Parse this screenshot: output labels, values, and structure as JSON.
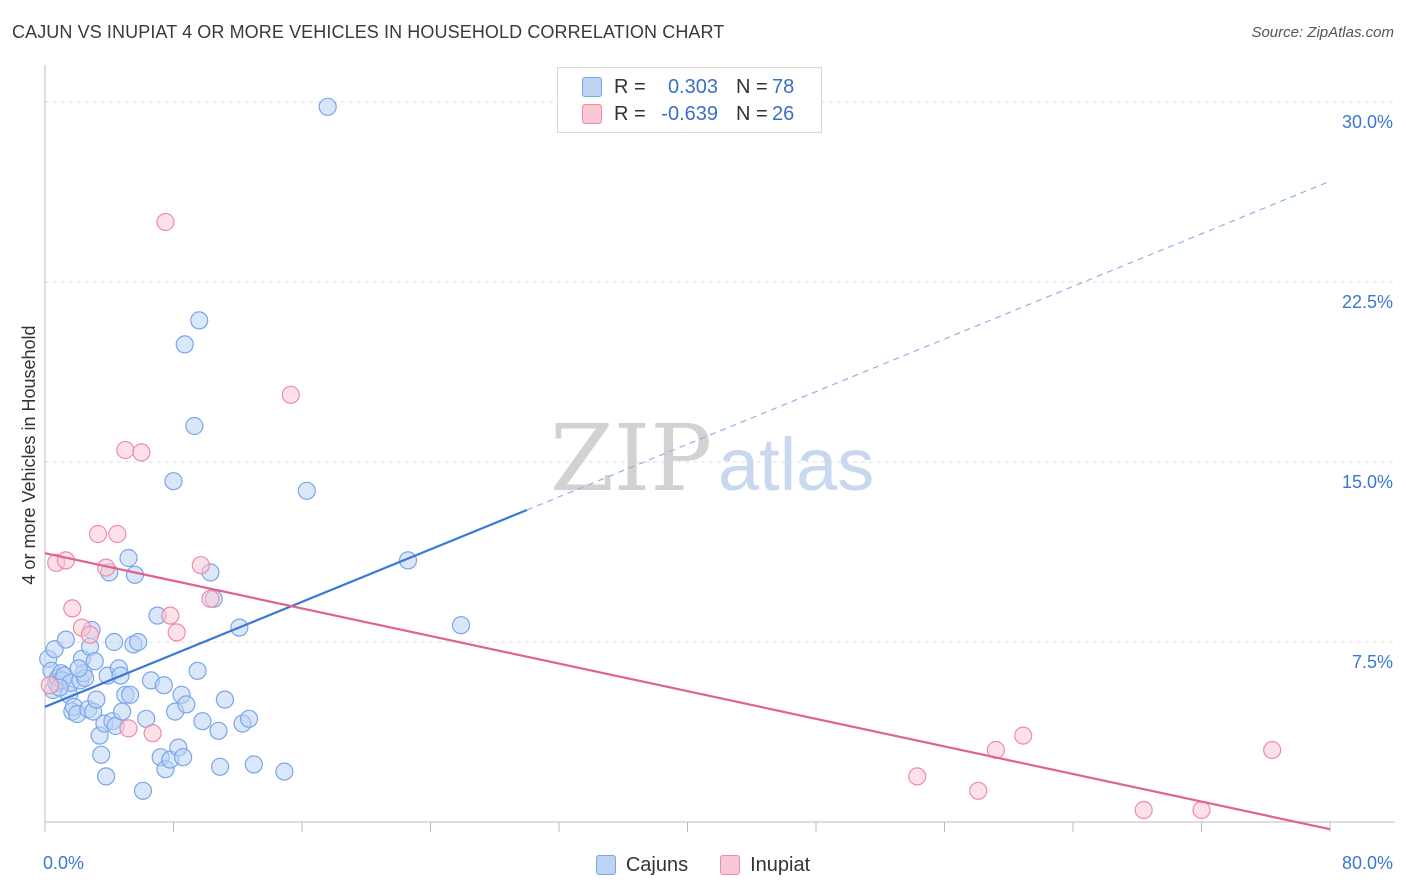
{
  "title": "CAJUN VS INUPIAT 4 OR MORE VEHICLES IN HOUSEHOLD CORRELATION CHART",
  "source": "Source: ZipAtlas.com",
  "watermark": {
    "zip": "ZIP",
    "atlas": "atlas"
  },
  "legend_top": [
    {
      "name": "Cajuns",
      "r_label": "R =",
      "r_value": "0.303",
      "n_label": "N =",
      "n_value": "78",
      "color": "#7aa6e8",
      "fill": "#bcd3f4"
    },
    {
      "name": "Inupiat",
      "r_label": "R =",
      "r_value": "-0.639",
      "n_label": "N =",
      "n_value": "26",
      "color": "#f08aaa",
      "fill": "#f9c8d6"
    }
  ],
  "legend_bottom": [
    {
      "label": "Cajuns",
      "color": "#7aa6e8",
      "fill": "#bcd3f4"
    },
    {
      "label": "Inupiat",
      "color": "#f08aaa",
      "fill": "#f9c8d6"
    }
  ],
  "chart_data": {
    "type": "scatter",
    "title": "CAJUN VS INUPIAT 4 OR MORE VEHICLES IN HOUSEHOLD CORRELATION CHART",
    "xlabel": "",
    "ylabel": "4 or more Vehicles in Household",
    "xlim": [
      0,
      80
    ],
    "ylim": [
      0,
      31
    ],
    "x_tick_labels": [
      {
        "value": 0,
        "label": "0.0%"
      },
      {
        "value": 80,
        "label": "80.0%"
      }
    ],
    "y_tick_labels": [
      {
        "value": 7.5,
        "label": "7.5%"
      },
      {
        "value": 15.0,
        "label": "15.0%"
      },
      {
        "value": 22.5,
        "label": "22.5%"
      },
      {
        "value": 30.0,
        "label": "30.0%"
      }
    ],
    "series": [
      {
        "name": "Cajuns",
        "color": "#3a78d4",
        "fill": "#bcd3f4",
        "stroke": "#7aa6e8",
        "trend": {
          "x0": 0,
          "y0": 4.8,
          "x1": 30,
          "y1": 13.0,
          "x_dash_end": 80,
          "y_dash_end": 26.7
        },
        "points": [
          [
            0.2,
            6.8
          ],
          [
            0.4,
            6.3
          ],
          [
            0.5,
            5.5
          ],
          [
            0.6,
            7.2
          ],
          [
            0.7,
            5.8
          ],
          [
            0.8,
            6.0
          ],
          [
            1.0,
            6.2
          ],
          [
            1.1,
            5.9
          ],
          [
            1.2,
            6.1
          ],
          [
            1.3,
            7.6
          ],
          [
            1.5,
            5.3
          ],
          [
            1.6,
            5.8
          ],
          [
            1.7,
            4.6
          ],
          [
            1.8,
            4.8
          ],
          [
            2.0,
            4.5
          ],
          [
            2.2,
            5.9
          ],
          [
            2.3,
            6.8
          ],
          [
            2.4,
            6.2
          ],
          [
            2.5,
            6.0
          ],
          [
            2.7,
            4.7
          ],
          [
            2.8,
            7.3
          ],
          [
            2.9,
            8.0
          ],
          [
            3.0,
            4.6
          ],
          [
            3.1,
            6.7
          ],
          [
            3.2,
            5.1
          ],
          [
            3.4,
            3.6
          ],
          [
            3.5,
            2.8
          ],
          [
            3.7,
            4.1
          ],
          [
            3.8,
            1.9
          ],
          [
            3.9,
            6.1
          ],
          [
            4.0,
            10.4
          ],
          [
            4.2,
            4.2
          ],
          [
            4.3,
            7.5
          ],
          [
            4.4,
            4.0
          ],
          [
            4.6,
            6.4
          ],
          [
            4.7,
            6.1
          ],
          [
            4.8,
            4.6
          ],
          [
            5.0,
            5.3
          ],
          [
            5.2,
            11.0
          ],
          [
            5.3,
            5.3
          ],
          [
            5.5,
            7.4
          ],
          [
            5.6,
            10.3
          ],
          [
            5.8,
            7.5
          ],
          [
            6.1,
            1.3
          ],
          [
            6.3,
            4.3
          ],
          [
            6.6,
            5.9
          ],
          [
            7.0,
            8.6
          ],
          [
            7.2,
            2.7
          ],
          [
            7.4,
            5.7
          ],
          [
            7.5,
            2.2
          ],
          [
            7.8,
            2.6
          ],
          [
            8.0,
            14.2
          ],
          [
            8.1,
            4.6
          ],
          [
            8.3,
            3.1
          ],
          [
            8.5,
            5.3
          ],
          [
            8.6,
            2.7
          ],
          [
            8.8,
            4.9
          ],
          [
            9.3,
            16.5
          ],
          [
            9.5,
            6.3
          ],
          [
            9.8,
            4.2
          ],
          [
            9.6,
            20.9
          ],
          [
            8.7,
            19.9
          ],
          [
            10.3,
            10.4
          ],
          [
            10.5,
            9.3
          ],
          [
            10.8,
            3.8
          ],
          [
            10.9,
            2.3
          ],
          [
            11.2,
            5.1
          ],
          [
            12.1,
            8.1
          ],
          [
            12.3,
            4.1
          ],
          [
            12.7,
            4.3
          ],
          [
            13.0,
            2.4
          ],
          [
            14.9,
            2.1
          ],
          [
            16.3,
            13.8
          ],
          [
            17.6,
            29.8
          ],
          [
            22.6,
            10.9
          ],
          [
            25.9,
            8.2
          ],
          [
            0.9,
            5.6
          ],
          [
            2.1,
            6.4
          ]
        ]
      },
      {
        "name": "Inupiat",
        "color": "#e0628f",
        "fill": "#f9c8d6",
        "stroke": "#f08aaa",
        "trend": {
          "x0": 0,
          "y0": 11.2,
          "x1": 80,
          "y1": -0.3
        },
        "points": [
          [
            0.3,
            5.7
          ],
          [
            0.7,
            10.8
          ],
          [
            1.3,
            10.9
          ],
          [
            1.7,
            8.9
          ],
          [
            2.3,
            8.1
          ],
          [
            2.8,
            7.8
          ],
          [
            3.3,
            12.0
          ],
          [
            3.8,
            10.6
          ],
          [
            4.5,
            12.0
          ],
          [
            5.0,
            15.5
          ],
          [
            5.2,
            3.9
          ],
          [
            6.0,
            15.4
          ],
          [
            6.7,
            3.7
          ],
          [
            7.5,
            25.0
          ],
          [
            7.8,
            8.6
          ],
          [
            8.2,
            7.9
          ],
          [
            9.7,
            10.7
          ],
          [
            10.3,
            9.3
          ],
          [
            15.3,
            17.8
          ],
          [
            54.3,
            1.9
          ],
          [
            58.1,
            1.3
          ],
          [
            59.2,
            3.0
          ],
          [
            60.9,
            3.6
          ],
          [
            68.4,
            0.5
          ],
          [
            72.0,
            0.5
          ],
          [
            76.4,
            3.0
          ]
        ]
      }
    ]
  }
}
